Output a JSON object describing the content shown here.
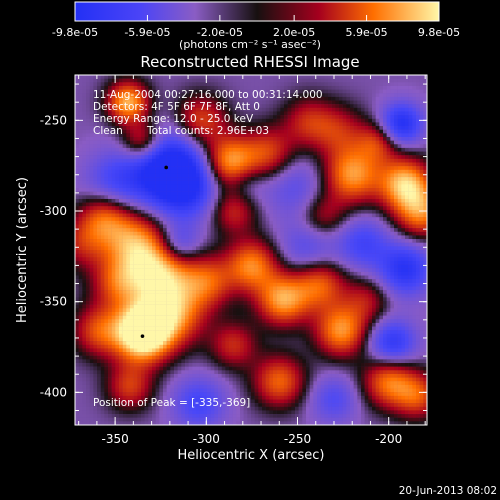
{
  "app": {
    "footer_date": "20-Jun-2013 08:02"
  },
  "chart_data": {
    "type": "heatmap",
    "title": "Reconstructed RHESSI Image",
    "xlabel": "Heliocentric X (arcsec)",
    "ylabel": "Heliocentric Y (arcsec)",
    "xlim": [
      -372,
      -179
    ],
    "ylim": [
      -418,
      -225
    ],
    "xticks": [
      -350,
      -300,
      -250,
      -200
    ],
    "yticks": [
      -250,
      -300,
      -350,
      -400
    ],
    "xtick_labels": [
      "-350",
      "-300",
      "-250",
      "-200"
    ],
    "ytick_labels": [
      "-250",
      "-300",
      "-350",
      "-400"
    ],
    "colorbar": {
      "min": -9.8e-05,
      "max": 9.8e-05,
      "ticks": [
        -9.8e-05,
        -5.9e-05,
        -2e-05,
        2e-05,
        5.9e-05,
        9.8e-05
      ],
      "tick_labels": [
        "-9.8e-05",
        "-5.9e-05",
        "-2.0e-05",
        "2.0e-05",
        "5.9e-05",
        "9.8e-05"
      ],
      "unit": "(photons cm⁻² s⁻¹ asec⁻²)"
    },
    "annotations": {
      "time_range": "11-Aug-2004 00:27:16.000 to 00:31:14.000",
      "detectors": "Detectors: 4F 5F 6F 7F 8F, Att 0",
      "energy_range": "Energy Range: 12.0 - 25.0 keV",
      "clean_label": "Clean",
      "total_counts": "Total counts: 2.96E+03",
      "peak": "Position of Peak = [-335,-369]"
    },
    "blobs": [
      {
        "x": -343,
        "y": -240,
        "value": 9.5e-05,
        "sigma": 8
      },
      {
        "x": -335,
        "y": -262,
        "value": 6.8e-05,
        "sigma": 8
      },
      {
        "x": -350,
        "y": -285,
        "value": -4.8e-05,
        "sigma": 12
      },
      {
        "x": -322,
        "y": -276,
        "value": -9.8e-05,
        "sigma": 14
      },
      {
        "x": -311,
        "y": -287,
        "value": -6.5e-05,
        "sigma": 12
      },
      {
        "x": -303,
        "y": -250,
        "value": 6e-05,
        "sigma": 10
      },
      {
        "x": -287,
        "y": -273,
        "value": 9e-05,
        "sigma": 10
      },
      {
        "x": -266,
        "y": -268,
        "value": 5.8e-05,
        "sigma": 10
      },
      {
        "x": -244,
        "y": -251,
        "value": 4.8e-05,
        "sigma": 10
      },
      {
        "x": -227,
        "y": -256,
        "value": 4.2e-05,
        "sigma": 10
      },
      {
        "x": -220,
        "y": -280,
        "value": 8.7e-05,
        "sigma": 11
      },
      {
        "x": -206,
        "y": -262,
        "value": 5e-05,
        "sigma": 8
      },
      {
        "x": -193,
        "y": -252,
        "value": -8.2e-05,
        "sigma": 8
      },
      {
        "x": -191,
        "y": -285,
        "value": 9.7e-05,
        "sigma": 10
      },
      {
        "x": -182,
        "y": -301,
        "value": 7.5e-05,
        "sigma": 10
      },
      {
        "x": -251,
        "y": -287,
        "value": -3.4e-05,
        "sigma": 12
      },
      {
        "x": -236,
        "y": -303,
        "value": 4.3e-05,
        "sigma": 9
      },
      {
        "x": -356,
        "y": -303,
        "value": 6.5e-05,
        "sigma": 10
      },
      {
        "x": -368,
        "y": -318,
        "value": 4.2e-05,
        "sigma": 10
      },
      {
        "x": -340,
        "y": -317,
        "value": 7.6e-05,
        "sigma": 12
      },
      {
        "x": -326,
        "y": -335,
        "value": 9.8e-05,
        "sigma": 13
      },
      {
        "x": -317,
        "y": -357,
        "value": 7.2e-05,
        "sigma": 12
      },
      {
        "x": -334,
        "y": -364,
        "value": 6.3e-05,
        "sigma": 10
      },
      {
        "x": -349,
        "y": -340,
        "value": 5.4e-05,
        "sigma": 10
      },
      {
        "x": -359,
        "y": -366,
        "value": 6.1e-05,
        "sigma": 10
      },
      {
        "x": -335,
        "y": -369,
        "value": 9.8e-05,
        "sigma": 11
      },
      {
        "x": -299,
        "y": -339,
        "value": 6e-05,
        "sigma": 10
      },
      {
        "x": -285,
        "y": -300,
        "value": 5e-05,
        "sigma": 9
      },
      {
        "x": -275,
        "y": -330,
        "value": 8e-05,
        "sigma": 10
      },
      {
        "x": -258,
        "y": -349,
        "value": 8.8e-05,
        "sigma": 10
      },
      {
        "x": -238,
        "y": -340,
        "value": 7e-05,
        "sigma": 10
      },
      {
        "x": -226,
        "y": -366,
        "value": 8.5e-05,
        "sigma": 10
      },
      {
        "x": -212,
        "y": -349,
        "value": 4e-05,
        "sigma": 9
      },
      {
        "x": -200,
        "y": -394,
        "value": 7.5e-05,
        "sigma": 10
      },
      {
        "x": -184,
        "y": -402,
        "value": 6e-05,
        "sigma": 9
      },
      {
        "x": -198,
        "y": -373,
        "value": -7e-05,
        "sigma": 9
      },
      {
        "x": -191,
        "y": -332,
        "value": -7.5e-05,
        "sigma": 10
      },
      {
        "x": -214,
        "y": -318,
        "value": -5e-05,
        "sigma": 10
      },
      {
        "x": -244,
        "y": -321,
        "value": -4e-05,
        "sigma": 11
      },
      {
        "x": -230,
        "y": -404,
        "value": -4e-05,
        "sigma": 9
      },
      {
        "x": -260,
        "y": -394,
        "value": 7e-05,
        "sigma": 10
      },
      {
        "x": -285,
        "y": -374,
        "value": 5e-05,
        "sigma": 9
      },
      {
        "x": -304,
        "y": -406,
        "value": -5e-05,
        "sigma": 10
      },
      {
        "x": -342,
        "y": -397,
        "value": 5.5e-05,
        "sigma": 9
      },
      {
        "x": -315,
        "y": -318,
        "value": -5e-05,
        "sigma": 8
      },
      {
        "x": -278,
        "y": -285,
        "value": -2.5e-05,
        "sigma": 8
      }
    ]
  }
}
